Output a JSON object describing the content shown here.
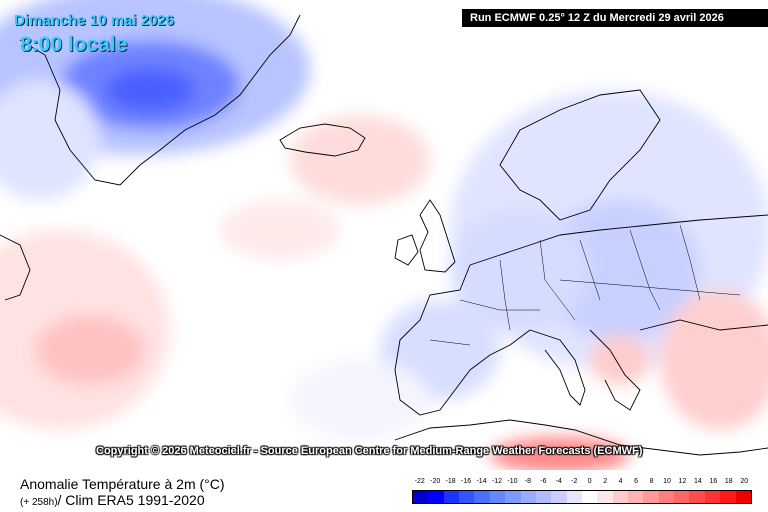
{
  "header": {
    "date": "Dimanche 10 mai 2026",
    "time": "8:00 locale",
    "run": "Run ECMWF 0.25° 12 Z du Mercredi 29 avril 2026"
  },
  "copyright": "Copyright © 2026 Meteociel.fr - Source European Centre for Medium-Range Weather Forecasts (ECMWF)",
  "legend": {
    "title": "Anomalie Température à 2m (°C)",
    "horizon": "(+ 258h)",
    "clim": "/ Clim ERA5 1991-2020",
    "ticks": [
      "-22",
      "-20",
      "-18",
      "-16",
      "-14",
      "-12",
      "-10",
      "-8",
      "-6",
      "-4",
      "-2",
      "0",
      "2",
      "4",
      "6",
      "8",
      "10",
      "12",
      "14",
      "16",
      "18",
      "20"
    ],
    "colors": [
      "#0000cc",
      "#0000ff",
      "#1a33ff",
      "#3355ff",
      "#4d6eff",
      "#6688ff",
      "#7f9aff",
      "#99aaff",
      "#b3bbff",
      "#ccccff",
      "#e6e6ff",
      "#ffffff",
      "#ffe6e6",
      "#ffcccc",
      "#ffb3b3",
      "#ff9999",
      "#ff7f7f",
      "#ff6666",
      "#ff4d4d",
      "#ff3333",
      "#ff1a1a",
      "#ee0000"
    ]
  }
}
